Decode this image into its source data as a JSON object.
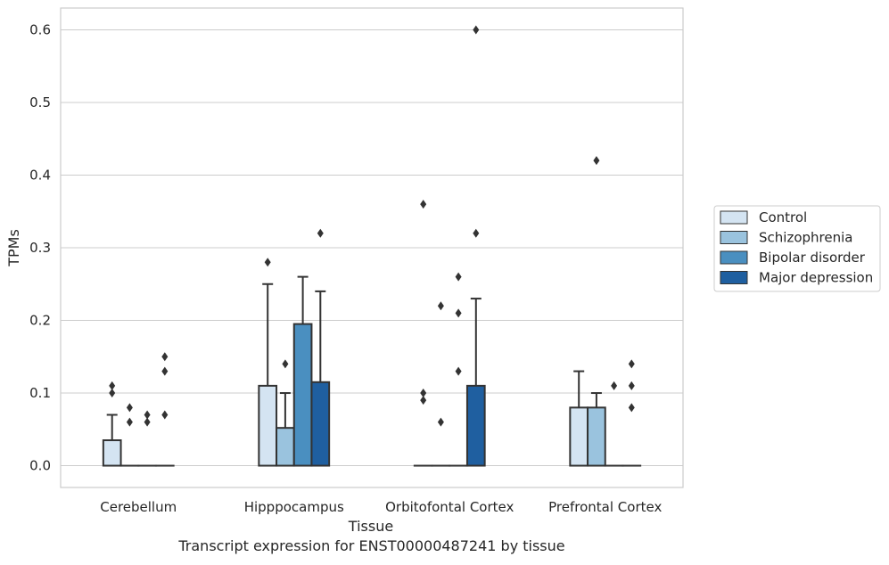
{
  "chart_data": {
    "type": "bar",
    "xlabel": "Tissue",
    "ylabel": "TPMs",
    "ylim": [
      -0.03,
      0.63
    ],
    "yticks": [
      "0.0",
      "0.1",
      "0.2",
      "0.3",
      "0.4",
      "0.5",
      "0.6"
    ],
    "grid": "horizontal",
    "legend_position": "right",
    "categories": [
      "Cerebellum",
      "Hipppocampus",
      "Orbitofontal Cortex",
      "Prefrontal Cortex"
    ],
    "series": [
      {
        "name": "Control",
        "color": "#d4e4f2",
        "values": [
          0.035,
          0.11,
          0.0,
          0.08
        ],
        "error_upper": [
          0.07,
          0.25,
          null,
          0.13
        ],
        "outliers": [
          [
            0.1,
            0.11
          ],
          [
            0.28
          ],
          [
            0.09,
            0.1,
            0.36
          ],
          []
        ]
      },
      {
        "name": "Schizophrenia",
        "color": "#9ac3de",
        "values": [
          0.0,
          0.052,
          0.0,
          0.08
        ],
        "error_upper": [
          null,
          0.1,
          null,
          0.1
        ],
        "outliers": [
          [
            0.06,
            0.08
          ],
          [
            0.14
          ],
          [
            0.06,
            0.22
          ],
          [
            0.42
          ]
        ]
      },
      {
        "name": "Bipolar disorder",
        "color": "#4a8fc0",
        "values": [
          0.0,
          0.195,
          0.0,
          0.0
        ],
        "error_upper": [
          null,
          0.26,
          null,
          null
        ],
        "outliers": [
          [
            0.06,
            0.07
          ],
          [],
          [
            0.13,
            0.21,
            0.26
          ],
          [
            0.11
          ]
        ]
      },
      {
        "name": "Major depression",
        "color": "#1f5fa0",
        "values": [
          0.0,
          0.115,
          0.11,
          0.0
        ],
        "error_upper": [
          null,
          0.24,
          0.23,
          null
        ],
        "outliers": [
          [
            0.07,
            0.13,
            0.15
          ],
          [
            0.32
          ],
          [
            0.32,
            0.6
          ],
          [
            0.08,
            0.11,
            0.14
          ]
        ]
      }
    ]
  },
  "caption": "Transcript expression for ENST00000487241 by tissue"
}
